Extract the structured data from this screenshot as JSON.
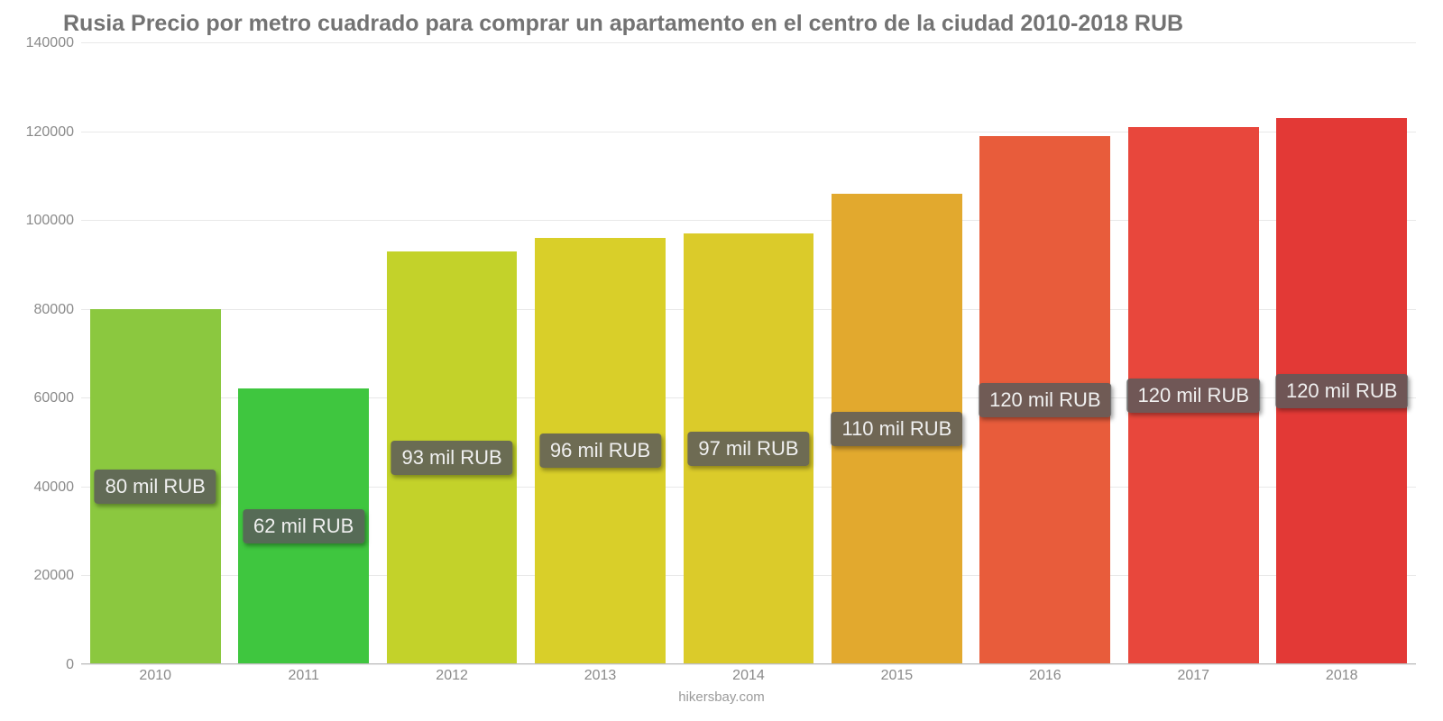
{
  "chart": {
    "type": "bar",
    "title": "Rusia Precio por metro cuadrado para comprar un apartamento en el centro de la ciudad 2010-2018 RUB",
    "title_fontsize": 25,
    "title_color": "#737373",
    "background_color": "#ffffff",
    "grid_color": "#e8e8e8",
    "axis_label_color": "#8a8a8a",
    "axis_label_fontsize": 16,
    "ylim": [
      0,
      140000
    ],
    "yticks": [
      0,
      20000,
      40000,
      60000,
      80000,
      100000,
      120000,
      140000
    ],
    "bar_width": 0.88,
    "categories": [
      "2010",
      "2011",
      "2012",
      "2013",
      "2014",
      "2015",
      "2016",
      "2017",
      "2018"
    ],
    "values": [
      80000,
      62000,
      93000,
      96000,
      97000,
      106000,
      119000,
      121000,
      123000
    ],
    "value_labels": [
      "80 mil RUB",
      "62 mil RUB",
      "93 mil RUB",
      "96 mil RUB",
      "97 mil RUB",
      "110 mil RUB",
      "120 mil RUB",
      "120 mil RUB",
      "120 mil RUB"
    ],
    "bar_colors": [
      "#8bc83f",
      "#3fc63f",
      "#c3d22a",
      "#d9cf29",
      "#dbcb2a",
      "#e2a92e",
      "#e85c3b",
      "#e8473c",
      "#e33936"
    ],
    "pill_bg": "rgba(90,90,90,0.85)",
    "pill_text_color": "#f0f0f0",
    "pill_fontsize": 22,
    "attribution": "hikersbay.com"
  }
}
